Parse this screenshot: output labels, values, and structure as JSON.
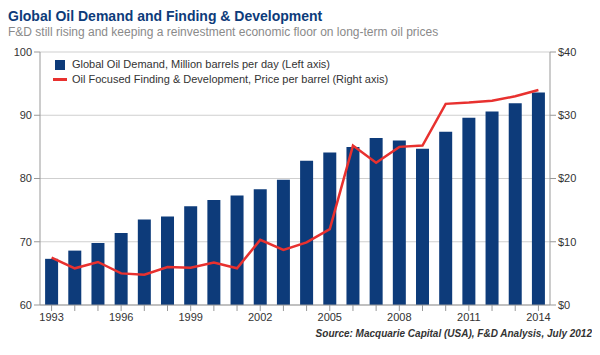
{
  "chart_data": {
    "type": "bar",
    "title": "Global Oil Demand and Finding & Development",
    "subtitle": "F&D still rising and keeping a reinvestment economic floor on long-term oil prices",
    "source": "Source: Macquarie Capital (USA), F&D Analysis, July 2012",
    "categories": [
      "1993",
      null,
      null,
      "1996",
      null,
      null,
      "1999",
      null,
      null,
      "2002",
      null,
      null,
      "2005",
      null,
      null,
      "2008",
      null,
      null,
      "2011",
      null,
      null,
      "2014"
    ],
    "series": [
      {
        "name": "Global Oil Demand, Million barrels per day (Left axis)",
        "type": "bar",
        "color": "#0d3b7a",
        "values": [
          67.3,
          68.6,
          69.8,
          71.4,
          73.5,
          74.0,
          75.6,
          76.6,
          77.3,
          78.3,
          79.8,
          82.8,
          84.1,
          85.0,
          86.4,
          86.0,
          84.7,
          87.4,
          89.6,
          90.6,
          91.9,
          93.6
        ]
      },
      {
        "name": "Oil Focused Finding & Development, Price per barrel (Right axis)",
        "type": "line",
        "axis": "y2",
        "color": "#e8312f",
        "values": [
          7.5,
          5.8,
          6.8,
          5.0,
          4.8,
          6.0,
          5.9,
          6.7,
          5.8,
          10.3,
          8.7,
          9.9,
          12.0,
          25.2,
          22.5,
          25.0,
          25.2,
          31.8,
          32.0,
          32.3,
          33.0,
          34.0
        ]
      }
    ],
    "ylim": [
      60,
      100
    ],
    "yticks": [
      60,
      70,
      80,
      90,
      100
    ],
    "y2lim": [
      0,
      40
    ],
    "y2ticks": [
      {
        "value": 0,
        "label": "$0"
      },
      {
        "value": 10,
        "label": "$10"
      },
      {
        "value": 20,
        "label": "$20"
      },
      {
        "value": 30,
        "label": "$30"
      },
      {
        "value": 40,
        "label": "$40"
      }
    ],
    "grid": true,
    "legend": "upper left"
  }
}
